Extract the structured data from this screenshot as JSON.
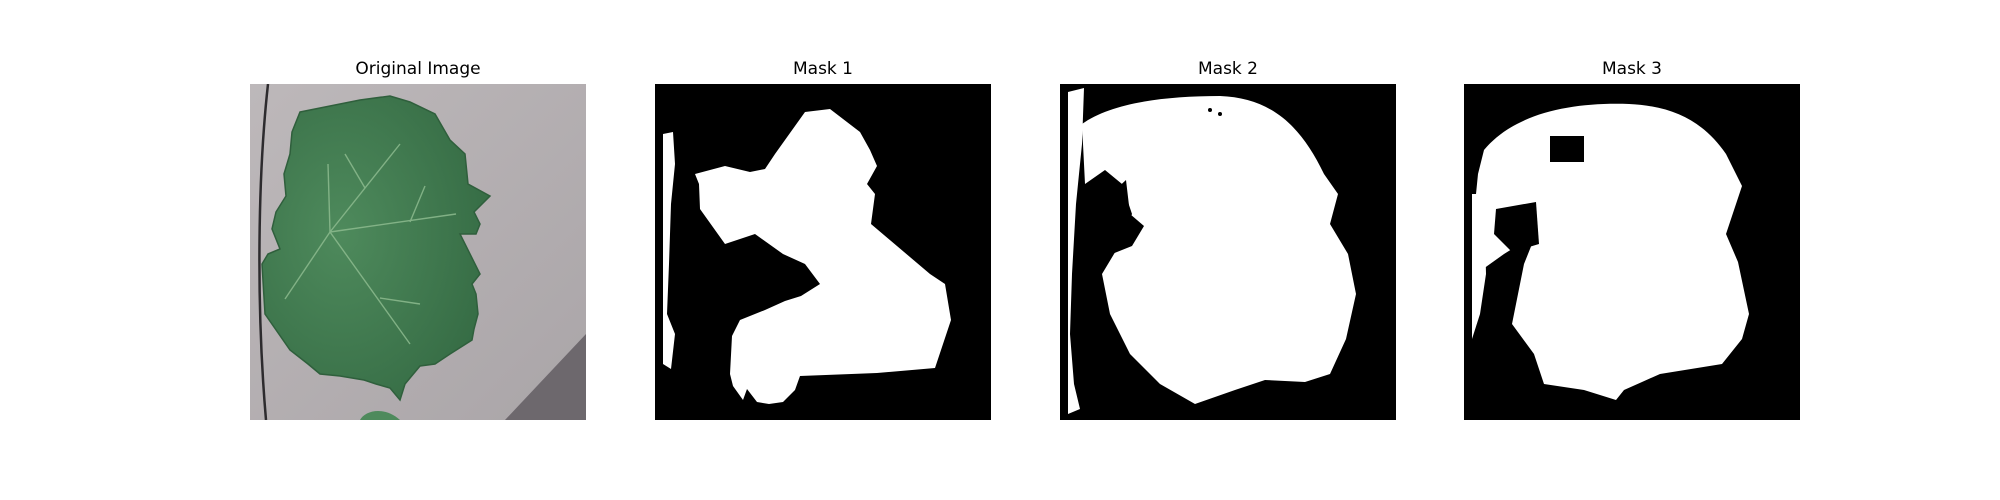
{
  "figure": {
    "panels": [
      {
        "title": "Original Image",
        "kind": "photo",
        "subject": "green grape leaf on grey background"
      },
      {
        "title": "Mask 1",
        "kind": "mask"
      },
      {
        "title": "Mask 2",
        "kind": "mask"
      },
      {
        "title": "Mask 3",
        "kind": "mask"
      }
    ],
    "colors": {
      "background": "#ffffff",
      "mask_bg": "#000000",
      "mask_fg": "#ffffff",
      "leaf": "#3f7a4f",
      "ground": "#b9b4b6"
    }
  }
}
